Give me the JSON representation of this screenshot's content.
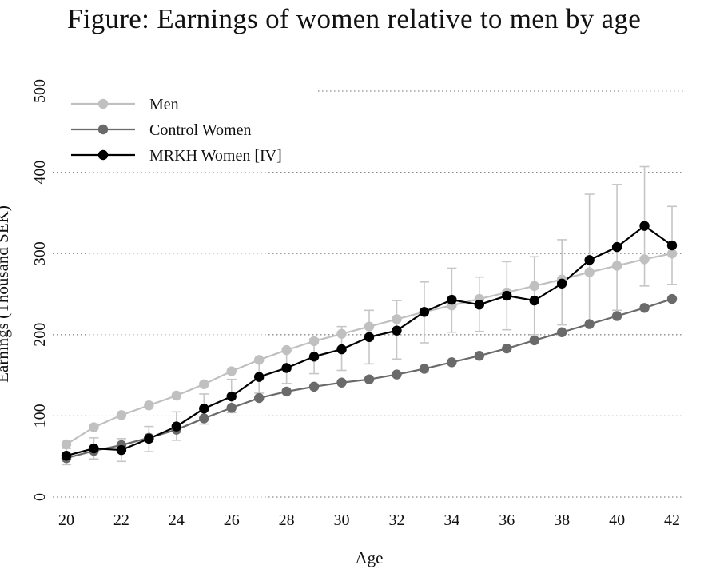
{
  "chart_data": {
    "type": "line",
    "title": "Figure: Earnings of women relative to men by age",
    "xlabel": "Age",
    "ylabel": "Earnings (Thousand SEK)",
    "xlim": [
      20,
      42
    ],
    "ylim": [
      0,
      500
    ],
    "x_ticks": [
      "20",
      "22",
      "24",
      "26",
      "28",
      "30",
      "32",
      "34",
      "36",
      "38",
      "40",
      "42"
    ],
    "y_ticks": [
      "0",
      "100",
      "200",
      "300",
      "400",
      "500"
    ],
    "grid": "horizontal dotted",
    "legend_position": "top-left",
    "x": [
      20,
      21,
      22,
      23,
      24,
      25,
      26,
      27,
      28,
      29,
      30,
      31,
      32,
      33,
      34,
      35,
      36,
      37,
      38,
      39,
      40,
      41,
      42
    ],
    "series": [
      {
        "name": "Men",
        "color": "#c0c0c0",
        "values": [
          65,
          86,
          101,
          113,
          125,
          139,
          155,
          169,
          181,
          192,
          201,
          210,
          219,
          228,
          236,
          244,
          252,
          260,
          268,
          277,
          285,
          293,
          300
        ]
      },
      {
        "name": "Control Women",
        "color": "#6a6a6a",
        "values": [
          48,
          57,
          64,
          73,
          83,
          97,
          110,
          122,
          130,
          136,
          141,
          145,
          151,
          158,
          166,
          174,
          183,
          193,
          203,
          213,
          223,
          233,
          244
        ]
      },
      {
        "name": "MRKH Women [IV]",
        "color": "#000000",
        "values": [
          51,
          60,
          58,
          72,
          87,
          109,
          124,
          148,
          159,
          173,
          182,
          197,
          205,
          228,
          243,
          237,
          248,
          242,
          263,
          292,
          308,
          334,
          310
        ],
        "ci_low": [
          40,
          47,
          44,
          56,
          70,
          90,
          104,
          128,
          140,
          152,
          156,
          164,
          170,
          190,
          203,
          204,
          206,
          200,
          212,
          212,
          230,
          260,
          262
        ],
        "ci_high": [
          60,
          73,
          72,
          87,
          105,
          127,
          145,
          168,
          179,
          195,
          210,
          230,
          242,
          265,
          282,
          271,
          290,
          296,
          317,
          373,
          385,
          407,
          358
        ]
      }
    ]
  }
}
